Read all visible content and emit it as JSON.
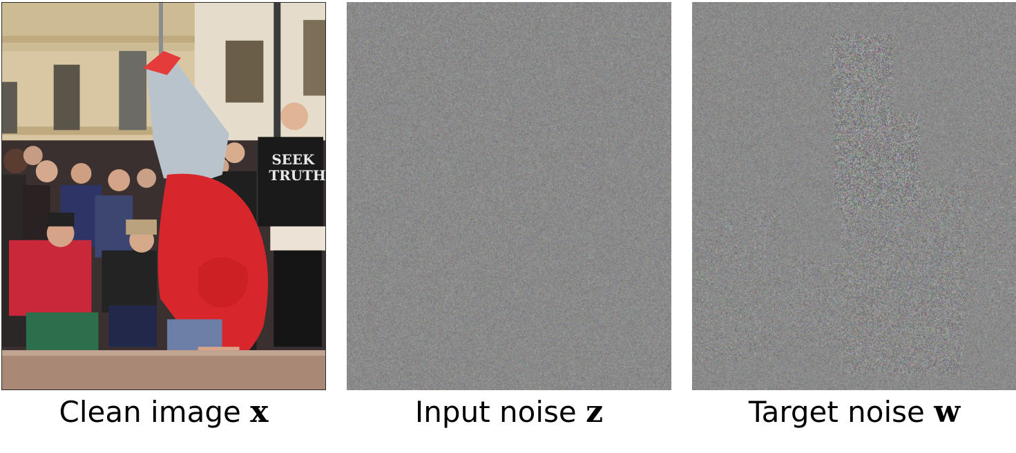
{
  "figure": {
    "panels": [
      {
        "id": "clean",
        "caption": "Clean image",
        "symbol": "x",
        "image_description_name": "breakdancer-photo",
        "shirt_text": [
          "SEEK",
          "TRUTH"
        ]
      },
      {
        "id": "input",
        "caption": "Input noise",
        "symbol": "z",
        "image_description_name": "gaussian-noise-image"
      },
      {
        "id": "target",
        "caption": "Target noise",
        "symbol": "w",
        "image_description_name": "structured-noise-image"
      }
    ]
  },
  "colors": {
    "noise_gray": "#8a8a8a",
    "hoodie_red": "#d7262c",
    "building": "#d9c9a6"
  }
}
